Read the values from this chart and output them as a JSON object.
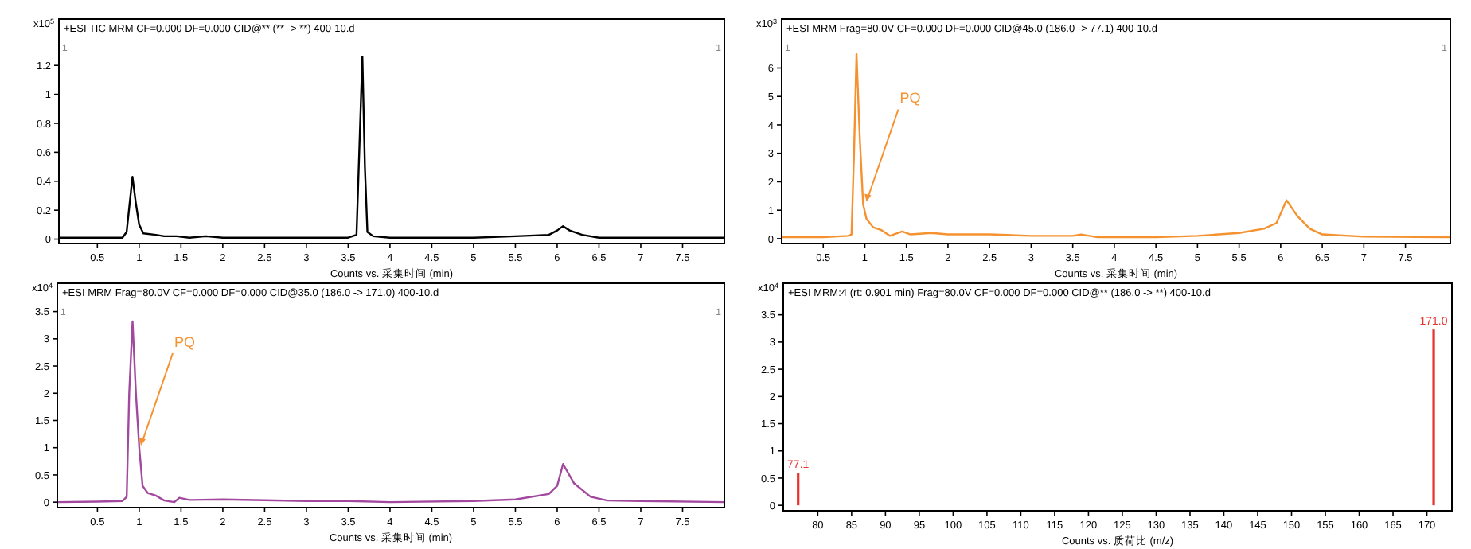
{
  "chart_data": [
    {
      "type": "line",
      "title": "+ESI TIC MRM CF=0.000 DF=0.000 CID@** (** -> **) 400-10.d",
      "xlabel": "Counts vs. 采集时间 (min)",
      "ylabel": "x10$^{5}$",
      "xlim": [
        0.04,
        8
      ],
      "ylim": [
        -0.03,
        1.52
      ],
      "xticks": [
        0.5,
        1,
        1.5,
        2,
        2.5,
        3,
        3.5,
        4,
        4.5,
        5,
        5.5,
        6,
        6.5,
        7,
        7.5
      ],
      "yticks": [
        0,
        0.2,
        0.4,
        0.6,
        0.8,
        1,
        1.2
      ],
      "annotations": [
        "1",
        "1"
      ],
      "series": [
        {
          "color": "#000000",
          "x": [
            0.04,
            0.8,
            0.85,
            0.92,
            0.96,
            1.0,
            1.05,
            1.2,
            1.3,
            1.45,
            1.6,
            1.8,
            2.0,
            2.5,
            3.0,
            3.5,
            3.6,
            3.67,
            3.7,
            3.73,
            3.8,
            4.0,
            5.0,
            5.5,
            5.9,
            6.0,
            6.07,
            6.15,
            6.3,
            6.5,
            7.0,
            8.0
          ],
          "values": [
            0.01,
            0.01,
            0.05,
            0.43,
            0.25,
            0.1,
            0.04,
            0.03,
            0.02,
            0.02,
            0.01,
            0.02,
            0.01,
            0.01,
            0.01,
            0.01,
            0.03,
            1.26,
            0.5,
            0.05,
            0.02,
            0.01,
            0.01,
            0.02,
            0.03,
            0.06,
            0.09,
            0.06,
            0.03,
            0.01,
            0.01,
            0.01
          ]
        }
      ]
    },
    {
      "type": "line",
      "title": "+ESI MRM Frag=80.0V CF=0.000 DF=0.000 CID@45.0 (186.0 -> 77.1) 400-10.d",
      "xlabel": "Counts vs. 采集时间 (min)",
      "ylabel": "x10$^{3}$",
      "xlim": [
        0,
        8.04
      ],
      "ylim": [
        -0.17,
        7.72
      ],
      "xticks": [
        0.5,
        1,
        1.5,
        2,
        2.5,
        3,
        3.5,
        4,
        4.5,
        5,
        5.5,
        6,
        6.5,
        7,
        7.5
      ],
      "yticks": [
        0,
        1,
        2,
        3,
        4,
        5,
        6
      ],
      "annotations": [
        "1",
        "1",
        {
          "text": "PQ",
          "x": 1.02,
          "y": 1.3
        }
      ],
      "series": [
        {
          "color": "#f5922f",
          "x": [
            0,
            0.5,
            0.8,
            0.84,
            0.87,
            0.9,
            0.94,
            0.98,
            1.02,
            1.1,
            1.2,
            1.3,
            1.45,
            1.55,
            1.8,
            2.0,
            2.5,
            3.0,
            3.5,
            3.6,
            3.8,
            4.5,
            5.0,
            5.5,
            5.8,
            5.95,
            6.07,
            6.2,
            6.35,
            6.5,
            7.0,
            8.04
          ],
          "values": [
            0.05,
            0.05,
            0.1,
            0.15,
            3,
            6.5,
            3.5,
            1.2,
            0.7,
            0.4,
            0.3,
            0.1,
            0.25,
            0.15,
            0.2,
            0.15,
            0.15,
            0.1,
            0.1,
            0.15,
            0.05,
            0.05,
            0.1,
            0.2,
            0.35,
            0.55,
            1.35,
            0.8,
            0.35,
            0.15,
            0.07,
            0.05
          ]
        }
      ]
    },
    {
      "type": "line",
      "title": "+ESI MRM Frag=80.0V CF=0.000 DF=0.000 CID@35.0 (186.0 -> 171.0) 400-10.d",
      "xlabel": "Counts vs. 采集时间 (min)",
      "ylabel": "x10$^{4}$",
      "xlim": [
        0.02,
        8
      ],
      "ylim": [
        -0.1,
        4.02
      ],
      "xticks": [
        0.5,
        1,
        1.5,
        2,
        2.5,
        3,
        3.5,
        4,
        4.5,
        5,
        5.5,
        6,
        6.5,
        7,
        7.5
      ],
      "yticks": [
        0,
        0.5,
        1,
        1.5,
        2,
        2.5,
        3,
        3.5
      ],
      "annotations": [
        "1",
        "1",
        {
          "text": "PQ",
          "x": 1.02,
          "y": 1.04
        }
      ],
      "series": [
        {
          "color": "#a3489f",
          "x": [
            0.02,
            0.5,
            0.8,
            0.85,
            0.88,
            0.92,
            0.96,
            1.0,
            1.04,
            1.1,
            1.2,
            1.3,
            1.42,
            1.48,
            1.6,
            2.0,
            3.0,
            3.5,
            4.0,
            5.0,
            5.5,
            5.9,
            6.0,
            6.07,
            6.2,
            6.4,
            6.6,
            7.0,
            8.0
          ],
          "values": [
            0,
            0.01,
            0.02,
            0.1,
            2.0,
            3.32,
            2.0,
            1.0,
            0.3,
            0.17,
            0.12,
            0.03,
            0.0,
            0.08,
            0.04,
            0.05,
            0.02,
            0.02,
            0.0,
            0.02,
            0.05,
            0.15,
            0.3,
            0.7,
            0.35,
            0.1,
            0.03,
            0.02,
            0.0
          ]
        }
      ]
    },
    {
      "type": "bar",
      "title": "+ESI MRM:4 (rt: 0.901 min) Frag=80.0V CF=0.000 DF=0.000 CID@** (186.0 -> **) 400-10.d",
      "xlabel": "Counts vs. 质荷比 (m/z)",
      "ylabel": "x10$^{4}$",
      "xlim": [
        74.9,
        173.7
      ],
      "ylim": [
        -0.1,
        4.08
      ],
      "xticks": [
        80,
        85,
        90,
        95,
        100,
        105,
        110,
        115,
        120,
        125,
        130,
        135,
        140,
        145,
        150,
        155,
        160,
        165,
        170
      ],
      "yticks": [
        0,
        0.5,
        1,
        1.5,
        2,
        2.5,
        3,
        3.5
      ],
      "annotations": [
        {
          "text": "77.1",
          "x": 77.1,
          "y": 0.6
        },
        {
          "text": "171.0",
          "x": 171.0,
          "y": 3.23
        }
      ],
      "series": [
        {
          "color": "#e8322b",
          "x": [
            77.1,
            171.0
          ],
          "values": [
            0.6,
            3.23
          ]
        }
      ]
    }
  ]
}
